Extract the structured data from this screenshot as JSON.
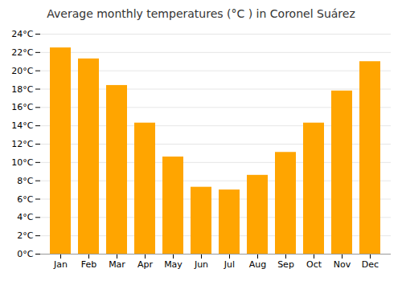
{
  "chart_data": {
    "type": "bar",
    "title": "Average monthly temperatures (°C ) in Coronel Suárez",
    "categories": [
      "Jan",
      "Feb",
      "Mar",
      "Apr",
      "May",
      "Jun",
      "Jul",
      "Aug",
      "Sep",
      "Oct",
      "Nov",
      "Dec"
    ],
    "values": [
      22.5,
      21.3,
      18.4,
      14.3,
      10.6,
      7.3,
      7.0,
      8.6,
      11.1,
      14.3,
      17.8,
      21.0
    ],
    "color": "#FFA500",
    "ylim": [
      0,
      24
    ],
    "yticks": [
      {
        "value": 0,
        "label": "0°C"
      },
      {
        "value": 2,
        "label": "2°C"
      },
      {
        "value": 4,
        "label": "4°C"
      },
      {
        "value": 6,
        "label": "6°C"
      },
      {
        "value": 8,
        "label": "8°C"
      },
      {
        "value": 10,
        "label": "10°C"
      },
      {
        "value": 12,
        "label": "12°C"
      },
      {
        "value": 14,
        "label": "14°C"
      },
      {
        "value": 16,
        "label": "16°C"
      },
      {
        "value": 18,
        "label": "18°C"
      },
      {
        "value": 20,
        "label": "20°C"
      },
      {
        "value": 22,
        "label": "22°C"
      },
      {
        "value": 24,
        "label": "24°C"
      }
    ],
    "grid": true
  }
}
